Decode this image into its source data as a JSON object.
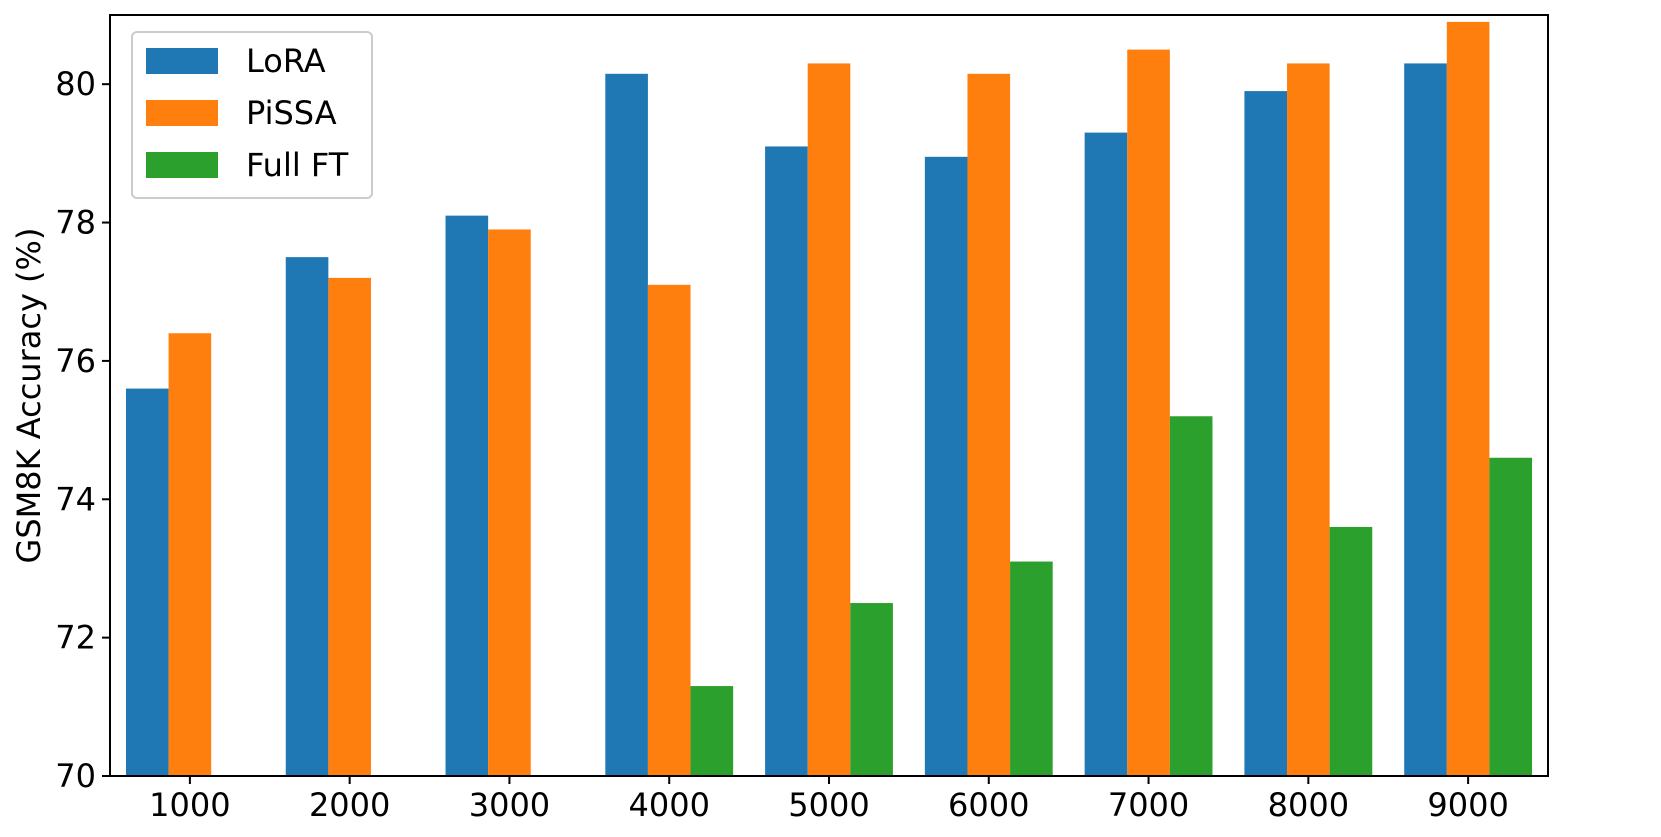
{
  "chart_data": {
    "type": "bar",
    "title": "",
    "xlabel": "",
    "ylabel": "GSM8K Accuracy (%)",
    "ylim": [
      70,
      81
    ],
    "yticks": [
      70,
      72,
      74,
      76,
      78,
      80
    ],
    "categories": [
      "1000",
      "2000",
      "3000",
      "4000",
      "5000",
      "6000",
      "7000",
      "8000",
      "9000"
    ],
    "series": [
      {
        "name": "LoRA",
        "color": "#1f77b4",
        "values": [
          75.6,
          77.5,
          78.1,
          80.15,
          79.1,
          78.95,
          79.3,
          79.9,
          80.3
        ]
      },
      {
        "name": "PiSSA",
        "color": "#ff7f0e",
        "values": [
          76.4,
          77.2,
          77.9,
          77.1,
          80.3,
          80.15,
          80.5,
          80.3,
          80.9
        ]
      },
      {
        "name": "Full FT",
        "color": "#2ca02c",
        "values": [
          null,
          null,
          null,
          71.3,
          72.5,
          73.1,
          75.2,
          73.6,
          74.6
        ]
      }
    ],
    "legend_position": "top-left",
    "grid": false
  }
}
